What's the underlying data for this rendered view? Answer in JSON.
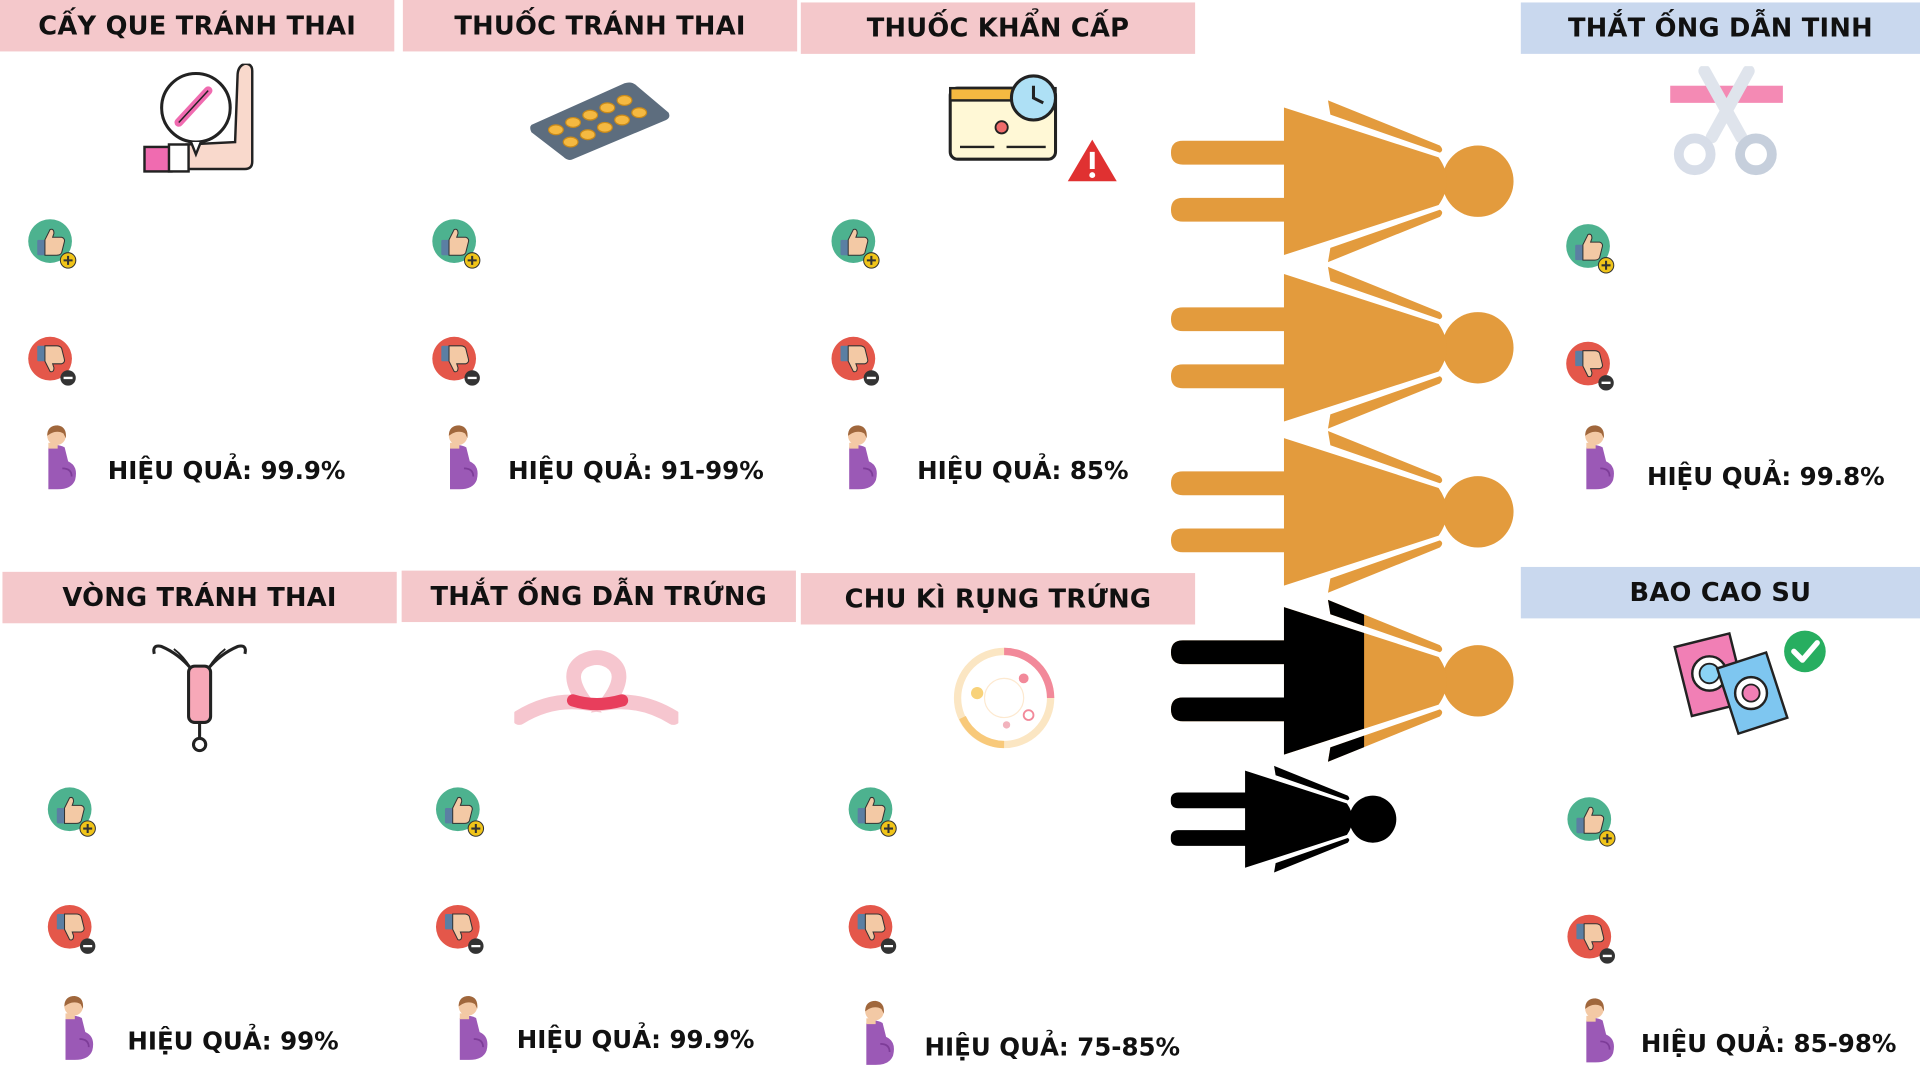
{
  "cards": {
    "implant": {
      "title": "CẤY QUE TRÁNH THAI",
      "effect": "HIỆU QUẢ: 99.9%"
    },
    "pill": {
      "title": "THUỐC TRÁNH THAI",
      "effect": "HIỆU QUẢ: 91-99%"
    },
    "emergency": {
      "title": "THUỐC KHẨN CẤP",
      "effect": "HIỆU QUẢ: 85%"
    },
    "iud": {
      "title": "VÒNG TRÁNH THAI",
      "effect": "HIỆU QUẢ: 99%"
    },
    "tubal": {
      "title": "THẮT ỐNG DẪN TRỨNG",
      "effect": "HIỆU QUẢ: 99.9%"
    },
    "cycle": {
      "title": "CHU KÌ RỤNG TRỨNG",
      "effect": "HIỆU QUẢ: 75-85%"
    },
    "vasectomy": {
      "title": "THẮT ỐNG DẪN TINH",
      "effect": "HIỆU QUẢ: 99.8%"
    },
    "condom": {
      "title": "BAO CAO SU",
      "effect": "HIỆU QUẢ: 85-98%"
    }
  },
  "colors": {
    "pink_header": "#f4c8cb",
    "blue_header": "#c9d8ee",
    "figure_orange": "#e39b3d",
    "figure_black": "#000000",
    "thumb_up_bg": "#4db28f",
    "thumb_down_bg": "#e4574a"
  },
  "icons": {
    "pro": "thumbs-up-plus-icon",
    "con": "thumbs-down-minus-icon",
    "effect": "pregnant-woman-icon"
  }
}
